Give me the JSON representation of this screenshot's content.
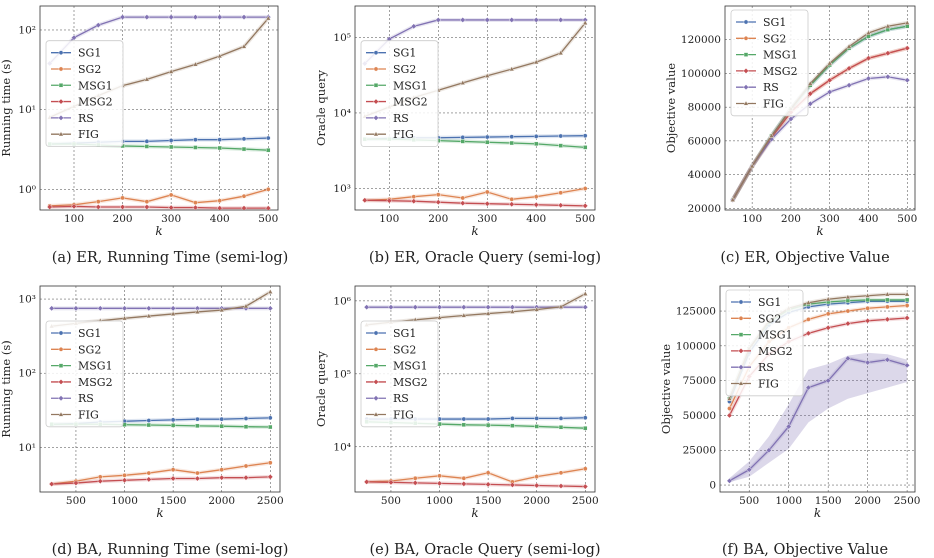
{
  "colors": {
    "SG1": "#4c72b0",
    "SG2": "#dd8452",
    "MSG1": "#55a868",
    "MSG2": "#c44e52",
    "RS": "#8172b3",
    "FIG": "#937860"
  },
  "legend_labels": [
    "SG1",
    "SG2",
    "MSG1",
    "MSG2",
    "RS",
    "FIG"
  ],
  "chart_data": [
    {
      "type": "line",
      "id": "a",
      "caption": "(a) ER, Running Time (semi-log)",
      "xlabel": "k",
      "ylabel": "Running time (s)",
      "yscale": "log",
      "xlim": [
        30,
        520
      ],
      "ylim": [
        0.55,
        200
      ],
      "xticks": [
        100,
        200,
        300,
        400,
        500
      ],
      "yticks": [
        {
          "value": 1,
          "label": "10⁰"
        },
        {
          "value": 10,
          "label": "10¹"
        },
        {
          "value": 100,
          "label": "10²"
        }
      ],
      "legend_position": "left",
      "x": [
        50,
        100,
        150,
        200,
        250,
        300,
        350,
        400,
        450,
        500
      ],
      "series": [
        {
          "name": "SG1",
          "values": [
            3.7,
            3.8,
            3.9,
            4.0,
            4.0,
            4.1,
            4.2,
            4.2,
            4.3,
            4.4
          ]
        },
        {
          "name": "SG2",
          "values": [
            0.62,
            0.64,
            0.7,
            0.78,
            0.7,
            0.85,
            0.68,
            0.72,
            0.82,
            1.0
          ]
        },
        {
          "name": "MSG1",
          "values": [
            3.7,
            3.7,
            3.6,
            3.5,
            3.45,
            3.4,
            3.35,
            3.3,
            3.2,
            3.1
          ]
        },
        {
          "name": "MSG2",
          "values": [
            0.6,
            0.61,
            0.6,
            0.6,
            0.6,
            0.59,
            0.59,
            0.58,
            0.58,
            0.58
          ]
        },
        {
          "name": "RS",
          "values": [
            38,
            80,
            115,
            145,
            145,
            145,
            145,
            145,
            145,
            145
          ]
        },
        {
          "name": "FIG",
          "values": [
            8,
            11,
            15,
            20,
            24,
            30,
            37,
            47,
            62,
            140
          ]
        }
      ]
    },
    {
      "type": "line",
      "id": "b",
      "caption": "(b) ER, Oracle Query (semi-log)",
      "xlabel": "k",
      "ylabel": "Oracle query",
      "yscale": "log",
      "xlim": [
        30,
        520
      ],
      "ylim": [
        520,
        260000
      ],
      "xticks": [
        100,
        200,
        300,
        400,
        500
      ],
      "yticks": [
        {
          "value": 1000,
          "label": "10³"
        },
        {
          "value": 10000,
          "label": "10⁴"
        },
        {
          "value": 100000,
          "label": "10⁵"
        }
      ],
      "legend_position": "left",
      "x": [
        50,
        100,
        150,
        200,
        250,
        300,
        350,
        400,
        450,
        500
      ],
      "series": [
        {
          "name": "SG1",
          "values": [
            4500,
            4600,
            4700,
            4700,
            4750,
            4800,
            4850,
            4900,
            4950,
            5000
          ]
        },
        {
          "name": "SG2",
          "values": [
            700,
            720,
            780,
            830,
            750,
            900,
            720,
            780,
            880,
            1000
          ]
        },
        {
          "name": "MSG1",
          "values": [
            4500,
            4500,
            4400,
            4300,
            4200,
            4100,
            4000,
            3900,
            3700,
            3500
          ]
        },
        {
          "name": "MSG2",
          "values": [
            700,
            690,
            680,
            660,
            640,
            630,
            620,
            610,
            600,
            590
          ]
        },
        {
          "name": "RS",
          "values": [
            45000,
            95000,
            140000,
            170000,
            170000,
            170000,
            170000,
            170000,
            170000,
            170000
          ]
        },
        {
          "name": "FIG",
          "values": [
            9000,
            12000,
            16000,
            20000,
            25000,
            31000,
            38000,
            47000,
            62000,
            155000
          ]
        }
      ]
    },
    {
      "type": "line",
      "id": "c",
      "caption": "(c) ER, Objective Value",
      "xlabel": "k",
      "ylabel": "Objective value",
      "yscale": "linear",
      "xlim": [
        30,
        520
      ],
      "ylim": [
        19000,
        140000
      ],
      "xticks": [
        100,
        200,
        300,
        400,
        500
      ],
      "yticks": [
        {
          "value": 20000,
          "label": "20000"
        },
        {
          "value": 40000,
          "label": "40000"
        },
        {
          "value": 60000,
          "label": "60000"
        },
        {
          "value": 80000,
          "label": "80000"
        },
        {
          "value": 100000,
          "label": "100000"
        },
        {
          "value": 120000,
          "label": "120000"
        }
      ],
      "legend_position": "top-left",
      "x": [
        50,
        100,
        150,
        200,
        250,
        300,
        350,
        400,
        450,
        500
      ],
      "series": [
        {
          "name": "SG1",
          "values": [
            25000,
            45000,
            63000,
            79000,
            93000,
            105000,
            115000,
            122000,
            126000,
            128000
          ]
        },
        {
          "name": "SG2",
          "values": [
            25000,
            45000,
            62000,
            77000,
            88000,
            96000,
            103000,
            109000,
            112000,
            115000
          ]
        },
        {
          "name": "MSG1",
          "values": [
            25000,
            45000,
            63000,
            79000,
            93000,
            105000,
            115000,
            122000,
            126000,
            128000
          ]
        },
        {
          "name": "MSG2",
          "values": [
            25000,
            45000,
            62000,
            77000,
            88000,
            96000,
            103000,
            109000,
            112000,
            115000
          ]
        },
        {
          "name": "RS",
          "values": [
            25000,
            45000,
            61000,
            73000,
            82000,
            89000,
            93000,
            97000,
            98000,
            96000
          ]
        },
        {
          "name": "FIG",
          "values": [
            25000,
            45000,
            63000,
            79000,
            94000,
            106000,
            116000,
            124000,
            128000,
            130000
          ]
        }
      ]
    },
    {
      "type": "line",
      "id": "d",
      "caption": "(d) BA, Running Time (semi-log)",
      "xlabel": "k",
      "ylabel": "Running time (s)",
      "yscale": "log",
      "xlim": [
        130,
        2600
      ],
      "ylim": [
        2.5,
        1500
      ],
      "xticks": [
        500,
        1000,
        1500,
        2000,
        2500
      ],
      "yticks": [
        {
          "value": 10,
          "label": "10¹"
        },
        {
          "value": 100,
          "label": "10²"
        },
        {
          "value": 1000,
          "label": "10³"
        }
      ],
      "legend_position": "left",
      "x": [
        250,
        500,
        750,
        1000,
        1250,
        1500,
        1750,
        2000,
        2250,
        2500
      ],
      "series": [
        {
          "name": "SG1",
          "values": [
            20.5,
            21,
            22,
            22.5,
            23,
            23.5,
            24,
            24,
            24.5,
            25
          ]
        },
        {
          "name": "SG2",
          "values": [
            3.2,
            3.5,
            4.0,
            4.2,
            4.5,
            5.0,
            4.5,
            5.0,
            5.6,
            6.2
          ]
        },
        {
          "name": "MSG1",
          "values": [
            20.5,
            20.5,
            20.5,
            20.2,
            20,
            19.8,
            19.5,
            19.3,
            19,
            18.8
          ]
        },
        {
          "name": "MSG2",
          "values": [
            3.2,
            3.3,
            3.5,
            3.6,
            3.7,
            3.8,
            3.8,
            3.9,
            3.9,
            4.0
          ]
        },
        {
          "name": "RS",
          "values": [
            750,
            750,
            750,
            750,
            750,
            750,
            750,
            750,
            750,
            750
          ]
        },
        {
          "name": "FIG",
          "values": [
            430,
            470,
            510,
            550,
            590,
            630,
            670,
            710,
            800,
            1250
          ]
        }
      ]
    },
    {
      "type": "line",
      "id": "e",
      "caption": "(e) BA, Oracle Query (semi-log)",
      "xlabel": "k",
      "ylabel": "Oracle query",
      "yscale": "log",
      "xlim": [
        130,
        2600
      ],
      "ylim": [
        2400,
        1600000
      ],
      "xticks": [
        500,
        1000,
        1500,
        2000,
        2500
      ],
      "yticks": [
        {
          "value": 10000,
          "label": "10⁴"
        },
        {
          "value": 100000,
          "label": "10⁵"
        },
        {
          "value": 1000000,
          "label": "10⁶"
        }
      ],
      "legend_position": "left",
      "x": [
        250,
        500,
        750,
        1000,
        1250,
        1500,
        1750,
        2000,
        2250,
        2500
      ],
      "series": [
        {
          "name": "SG1",
          "values": [
            24000,
            24000,
            24000,
            24000,
            24000,
            24000,
            24500,
            24500,
            24500,
            25000
          ]
        },
        {
          "name": "SG2",
          "values": [
            3300,
            3400,
            3700,
            4000,
            3700,
            4400,
            3300,
            3900,
            4400,
            5000
          ]
        },
        {
          "name": "MSG1",
          "values": [
            22000,
            21500,
            21000,
            20500,
            20000,
            19800,
            19500,
            19000,
            18500,
            18000
          ]
        },
        {
          "name": "MSG2",
          "values": [
            3300,
            3250,
            3200,
            3150,
            3100,
            3050,
            3000,
            2950,
            2900,
            2850
          ]
        },
        {
          "name": "RS",
          "values": [
            820000,
            820000,
            820000,
            820000,
            820000,
            820000,
            820000,
            820000,
            820000,
            820000
          ]
        },
        {
          "name": "FIG",
          "values": [
            470000,
            510000,
            550000,
            590000,
            630000,
            670000,
            710000,
            760000,
            830000,
            1250000
          ]
        }
      ]
    },
    {
      "type": "line",
      "id": "f",
      "caption": "(f) BA, Objective Value",
      "xlabel": "k",
      "ylabel": "Objective value",
      "yscale": "linear",
      "xlim": [
        130,
        2600
      ],
      "ylim": [
        -5000,
        143000
      ],
      "xticks": [
        500,
        1000,
        1500,
        2000,
        2500
      ],
      "yticks": [
        {
          "value": 0,
          "label": "0"
        },
        {
          "value": 25000,
          "label": "25000"
        },
        {
          "value": 50000,
          "label": "50000"
        },
        {
          "value": 75000,
          "label": "75000"
        },
        {
          "value": 100000,
          "label": "100000"
        },
        {
          "value": 125000,
          "label": "125000"
        }
      ],
      "legend_position": "top-left",
      "x": [
        250,
        500,
        750,
        1000,
        1250,
        1500,
        1750,
        2000,
        2250,
        2500
      ],
      "series": [
        {
          "name": "SG1",
          "values": [
            60000,
            95000,
            115000,
            124000,
            128000,
            130000,
            131000,
            132000,
            132000,
            132000
          ]
        },
        {
          "name": "SG2",
          "values": [
            55000,
            85000,
            103000,
            113000,
            119000,
            123000,
            125000,
            127000,
            128000,
            129000
          ]
        },
        {
          "name": "MSG1",
          "values": [
            62000,
            98000,
            117000,
            126000,
            130000,
            131500,
            132500,
            133000,
            133000,
            133000
          ]
        },
        {
          "name": "MSG2",
          "values": [
            50000,
            78000,
            94000,
            103000,
            109000,
            113000,
            116000,
            118000,
            119000,
            120000
          ]
        },
        {
          "name": "RS",
          "values": [
            3000,
            11000,
            25000,
            42000,
            70000,
            75000,
            91000,
            88000,
            90000,
            86000
          ],
          "band_low": [
            2000,
            6000,
            16000,
            26000,
            45000,
            55000,
            62000,
            66000,
            70000,
            74000
          ],
          "band_high": [
            5000,
            17000,
            35000,
            58000,
            83000,
            87000,
            93000,
            95000,
            94000,
            90000
          ]
        },
        {
          "name": "FIG",
          "values": [
            62000,
            98000,
            118000,
            127000,
            131000,
            133500,
            135000,
            136000,
            137000,
            137000
          ]
        }
      ]
    }
  ]
}
